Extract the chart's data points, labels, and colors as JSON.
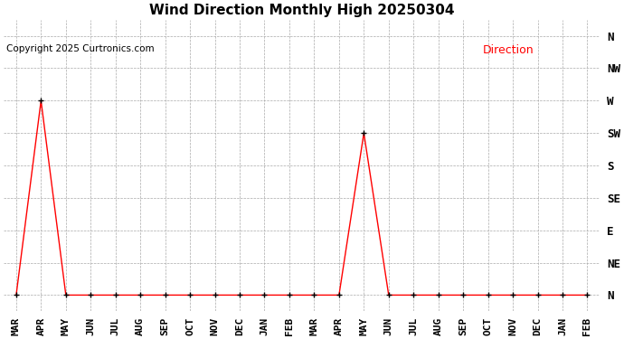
{
  "title": "Wind Direction Monthly High 20250304",
  "copyright": "Copyright 2025 Curtronics.com",
  "legend_label": "Direction",
  "legend_color": "#ff0000",
  "ytick_labels": [
    "N",
    "NE",
    "E",
    "SE",
    "S",
    "SW",
    "W",
    "NW",
    "N"
  ],
  "ytick_values": [
    0,
    1,
    2,
    3,
    4,
    5,
    6,
    7,
    8
  ],
  "x_labels": [
    "MAR",
    "APR",
    "MAY",
    "JUN",
    "JUL",
    "AUG",
    "SEP",
    "OCT",
    "NOV",
    "DEC",
    "JAN",
    "FEB",
    "MAR",
    "APR",
    "MAY",
    "JUN",
    "JUL",
    "AUG",
    "SEP",
    "OCT",
    "NOV",
    "DEC",
    "JAN",
    "FEB"
  ],
  "y_values": [
    0,
    6,
    0,
    0,
    0,
    0,
    0,
    0,
    0,
    0,
    0,
    0,
    0,
    0,
    5,
    0,
    0,
    0,
    0,
    0,
    0,
    0,
    0,
    0
  ],
  "line_color": "#ff0000",
  "marker_color": "#000000",
  "bg_color": "#ffffff",
  "grid_color": "#aaaaaa",
  "title_fontsize": 11,
  "axis_fontsize": 8,
  "copyright_fontsize": 7.5,
  "legend_fontsize": 9
}
